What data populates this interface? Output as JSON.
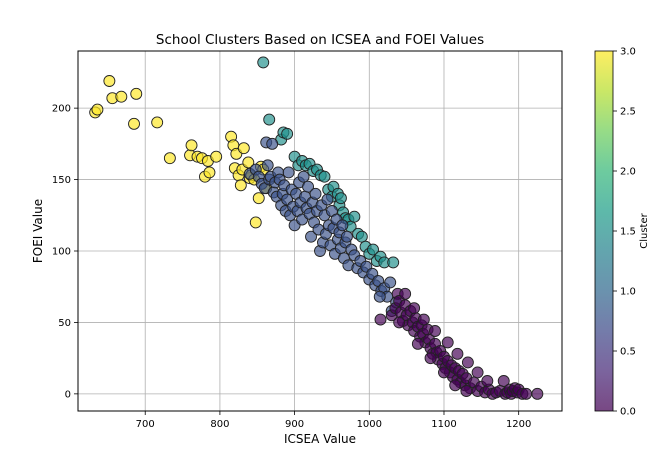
{
  "chart_data": {
    "type": "scatter",
    "title": "School Clusters Based on ICSEA and FOEI Values",
    "xlabel": "ICSEA Value",
    "ylabel": "FOEI Value",
    "xlim": [
      610,
      1258
    ],
    "ylim": [
      -12,
      240
    ],
    "xticks": [
      700,
      800,
      900,
      1000,
      1100,
      1200
    ],
    "yticks": [
      0,
      50,
      100,
      150,
      200
    ],
    "grid": true,
    "colorbar": {
      "label": "Cluster",
      "range": [
        0.0,
        3.0
      ],
      "ticks": [
        0.0,
        0.5,
        1.0,
        1.5,
        2.0,
        2.5,
        3.0
      ],
      "colormap": "viridis",
      "colors": [
        "#440154",
        "#482878",
        "#3e4989",
        "#31688e",
        "#26828e",
        "#1f9e89",
        "#35b779",
        "#6ece58",
        "#b5de2b",
        "#fde725"
      ]
    },
    "series": [
      {
        "cluster": 3,
        "color": "#fde725",
        "points": [
          [
            633,
            197
          ],
          [
            636,
            199
          ],
          [
            652,
            219
          ],
          [
            656,
            207
          ],
          [
            668,
            208
          ],
          [
            685,
            189
          ],
          [
            688,
            210
          ],
          [
            716,
            190
          ],
          [
            733,
            165
          ],
          [
            760,
            167
          ],
          [
            762,
            174
          ],
          [
            770,
            166
          ],
          [
            776,
            165
          ],
          [
            780,
            152
          ],
          [
            784,
            163
          ],
          [
            786,
            155
          ],
          [
            795,
            166
          ],
          [
            815,
            180
          ],
          [
            818,
            174
          ],
          [
            820,
            158
          ],
          [
            822,
            168
          ],
          [
            825,
            153
          ],
          [
            828,
            146
          ],
          [
            830,
            157
          ],
          [
            832,
            172
          ],
          [
            838,
            162
          ],
          [
            840,
            151
          ],
          [
            842,
            153
          ],
          [
            846,
            150
          ],
          [
            848,
            120
          ],
          [
            852,
            137
          ],
          [
            855,
            159
          ],
          [
            858,
            157
          ],
          [
            862,
            144
          ]
        ]
      },
      {
        "cluster": 2,
        "color": "#21918c",
        "points": [
          [
            858,
            232
          ],
          [
            866,
            192
          ],
          [
            882,
            178
          ],
          [
            885,
            183
          ],
          [
            890,
            182
          ],
          [
            900,
            166
          ],
          [
            905,
            160
          ],
          [
            910,
            163
          ],
          [
            915,
            160
          ],
          [
            920,
            161
          ],
          [
            925,
            156
          ],
          [
            930,
            157
          ],
          [
            935,
            153
          ],
          [
            940,
            152
          ],
          [
            945,
            143
          ],
          [
            950,
            138
          ],
          [
            952,
            145
          ],
          [
            958,
            140
          ],
          [
            960,
            132
          ],
          [
            962,
            137
          ],
          [
            965,
            127
          ],
          [
            968,
            123
          ],
          [
            972,
            122
          ],
          [
            975,
            117
          ],
          [
            980,
            124
          ],
          [
            985,
            112
          ],
          [
            990,
            110
          ],
          [
            995,
            103
          ],
          [
            1000,
            98
          ],
          [
            1005,
            101
          ],
          [
            1010,
            93
          ],
          [
            1015,
            96
          ],
          [
            1020,
            92
          ],
          [
            1032,
            92
          ]
        ]
      },
      {
        "cluster": 1,
        "color": "#3b528b",
        "points": [
          [
            840,
            154
          ],
          [
            848,
            157
          ],
          [
            852,
            152
          ],
          [
            856,
            147
          ],
          [
            860,
            144
          ],
          [
            862,
            176
          ],
          [
            864,
            160
          ],
          [
            866,
            150
          ],
          [
            868,
            152
          ],
          [
            870,
            175
          ],
          [
            872,
            141
          ],
          [
            874,
            148
          ],
          [
            876,
            138
          ],
          [
            878,
            155
          ],
          [
            880,
            150
          ],
          [
            882,
            132
          ],
          [
            884,
            140
          ],
          [
            886,
            146
          ],
          [
            888,
            128
          ],
          [
            890,
            136
          ],
          [
            892,
            155
          ],
          [
            894,
            125
          ],
          [
            896,
            143
          ],
          [
            898,
            131
          ],
          [
            900,
            118
          ],
          [
            902,
            140
          ],
          [
            904,
            128
          ],
          [
            906,
            148
          ],
          [
            908,
            134
          ],
          [
            910,
            122
          ],
          [
            912,
            152
          ],
          [
            914,
            138
          ],
          [
            916,
            130
          ],
          [
            918,
            145
          ],
          [
            920,
            126
          ],
          [
            922,
            110
          ],
          [
            924,
            134
          ],
          [
            926,
            120
          ],
          [
            928,
            140
          ],
          [
            930,
            128
          ],
          [
            932,
            115
          ],
          [
            934,
            100
          ],
          [
            936,
            132
          ],
          [
            938,
            106
          ],
          [
            940,
            125
          ],
          [
            942,
            112
          ],
          [
            944,
            136
          ],
          [
            946,
            118
          ],
          [
            948,
            104
          ],
          [
            950,
            128
          ],
          [
            952,
            116
          ],
          [
            954,
            98
          ],
          [
            956,
            122
          ],
          [
            958,
            108
          ],
          [
            960,
            113
          ],
          [
            962,
            102
          ],
          [
            964,
            118
          ],
          [
            966,
            95
          ],
          [
            968,
            106
          ],
          [
            970,
            110
          ],
          [
            972,
            90
          ],
          [
            976,
            101
          ],
          [
            980,
            97
          ],
          [
            984,
            88
          ],
          [
            988,
            93
          ],
          [
            992,
            85
          ],
          [
            996,
            89
          ],
          [
            1000,
            80
          ],
          [
            1004,
            84
          ],
          [
            1008,
            76
          ],
          [
            1012,
            79
          ],
          [
            1016,
            72
          ],
          [
            1020,
            74
          ],
          [
            1024,
            68
          ],
          [
            1028,
            78
          ],
          [
            1014,
            68
          ],
          [
            1030,
            58
          ],
          [
            1036,
            64
          ]
        ]
      },
      {
        "cluster": 0,
        "color": "#440154",
        "points": [
          [
            1015,
            52
          ],
          [
            1030,
            55
          ],
          [
            1035,
            60
          ],
          [
            1038,
            70
          ],
          [
            1040,
            65
          ],
          [
            1042,
            57
          ],
          [
            1045,
            51
          ],
          [
            1048,
            62
          ],
          [
            1050,
            55
          ],
          [
            1052,
            48
          ],
          [
            1055,
            58
          ],
          [
            1058,
            50
          ],
          [
            1060,
            44
          ],
          [
            1062,
            53
          ],
          [
            1065,
            47
          ],
          [
            1068,
            40
          ],
          [
            1070,
            48
          ],
          [
            1072,
            42
          ],
          [
            1075,
            36
          ],
          [
            1078,
            45
          ],
          [
            1080,
            38
          ],
          [
            1082,
            32
          ],
          [
            1085,
            28
          ],
          [
            1088,
            35
          ],
          [
            1090,
            29
          ],
          [
            1092,
            24
          ],
          [
            1095,
            30
          ],
          [
            1098,
            21
          ],
          [
            1100,
            26
          ],
          [
            1102,
            18
          ],
          [
            1105,
            23
          ],
          [
            1108,
            15
          ],
          [
            1110,
            20
          ],
          [
            1112,
            12
          ],
          [
            1115,
            18
          ],
          [
            1118,
            10
          ],
          [
            1120,
            16
          ],
          [
            1122,
            8
          ],
          [
            1125,
            14
          ],
          [
            1128,
            6
          ],
          [
            1130,
            11
          ],
          [
            1135,
            4
          ],
          [
            1140,
            8
          ],
          [
            1145,
            2
          ],
          [
            1150,
            5
          ],
          [
            1155,
            1
          ],
          [
            1160,
            3
          ],
          [
            1165,
            0
          ],
          [
            1170,
            1
          ],
          [
            1175,
            2
          ],
          [
            1180,
            9
          ],
          [
            1182,
            0
          ],
          [
            1185,
            1
          ],
          [
            1188,
            3
          ],
          [
            1190,
            0
          ],
          [
            1192,
            2
          ],
          [
            1195,
            4
          ],
          [
            1198,
            1
          ],
          [
            1200,
            3
          ],
          [
            1205,
            0
          ],
          [
            1210,
            0
          ],
          [
            1225,
            0
          ],
          [
            1048,
            70
          ],
          [
            1060,
            60
          ],
          [
            1073,
            52
          ],
          [
            1088,
            44
          ],
          [
            1105,
            36
          ],
          [
            1118,
            28
          ],
          [
            1132,
            22
          ],
          [
            1145,
            15
          ],
          [
            1158,
            9
          ],
          [
            1040,
            50
          ],
          [
            1065,
            35
          ],
          [
            1082,
            25
          ],
          [
            1100,
            15
          ],
          [
            1115,
            6
          ],
          [
            1130,
            2
          ]
        ]
      }
    ]
  }
}
